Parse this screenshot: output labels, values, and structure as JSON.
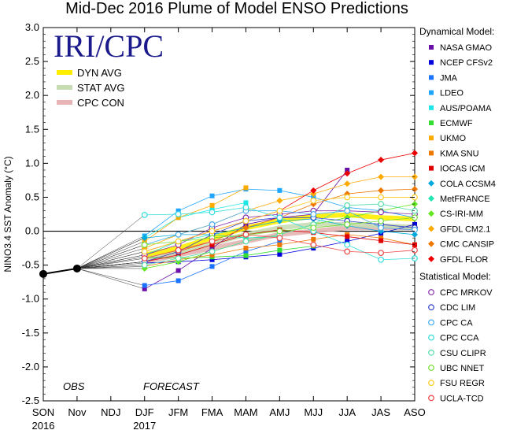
{
  "chart_data": {
    "type": "line",
    "title": "Mid-Dec 2016 Plume of Model ENSO Predictions",
    "ylabel": "NINO3.4 SST Anomaly (°C)",
    "xlabel": "",
    "categories": [
      "SON",
      "Nov",
      "NDJ",
      "DJF",
      "JFM",
      "FMA",
      "MAM",
      "AMJ",
      "MJJ",
      "JJA",
      "JAS",
      "ASO"
    ],
    "year_labels": [
      {
        "label": "2016",
        "at": "SON"
      },
      {
        "label": "2017",
        "at": "DJF"
      }
    ],
    "ylim": [
      -2.5,
      3.0
    ],
    "yticks": [
      -2.5,
      -2.0,
      -1.5,
      -1.0,
      -0.5,
      0.0,
      0.5,
      1.0,
      1.5,
      2.0,
      2.5,
      3.0
    ],
    "ytick_labels": [
      "-2.5",
      "-2.0",
      "-1.5",
      "-1.0",
      "-0.5",
      "0.0",
      "0.5",
      "1.0",
      "1.5",
      "2.0",
      "2.5",
      "3.0"
    ],
    "obs_label": "OBS",
    "forecast_label": "FORECAST",
    "logo_text": "IRI/CPC",
    "observed": {
      "name": "OBS",
      "categories": [
        "SON",
        "Nov"
      ],
      "values": [
        -0.63,
        -0.55
      ]
    },
    "averages": [
      {
        "name": "DYN AVG",
        "color": "#ffee00",
        "values": [
          -0.35,
          -0.25,
          -0.1,
          0.05,
          0.15,
          0.22,
          0.24,
          0.2,
          0.18
        ]
      },
      {
        "name": "STAT AVG",
        "color": "#c8dcb4",
        "values": [
          -0.4,
          -0.3,
          -0.18,
          -0.05,
          0.05,
          0.1,
          0.1,
          0.08,
          0.06
        ]
      },
      {
        "name": "CPC CON",
        "color": "#e6b4b4",
        "values": [
          -0.45,
          -0.35,
          -0.25,
          -0.15,
          -0.05,
          0.0,
          0.05,
          0.05,
          0.05
        ]
      }
    ],
    "legend_dynamical_title": "Dynamical Model:",
    "legend_statistical_title": "Statistical Model:",
    "series_dynamical": [
      {
        "name": "NASA GMAO",
        "color": "#6a0fa8",
        "marker": "square",
        "values": [
          -0.85,
          -0.58,
          -0.25,
          0.1,
          0.2,
          0.25,
          0.9,
          null,
          null
        ]
      },
      {
        "name": "NCEP CFSv2",
        "color": "#0000dd",
        "marker": "square",
        "values": [
          -0.47,
          -0.45,
          -0.42,
          -0.38,
          -0.34,
          -0.25,
          -0.15,
          -0.03,
          0.1
        ]
      },
      {
        "name": "JMA",
        "color": "#1a73ff",
        "marker": "square",
        "values": [
          -0.8,
          -0.73,
          -0.52,
          -0.3,
          -0.15,
          null,
          null,
          null,
          null
        ]
      },
      {
        "name": "LDEO",
        "color": "#1ea6ff",
        "marker": "square",
        "values": [
          -0.07,
          0.3,
          0.52,
          0.62,
          0.6,
          0.5,
          0.35,
          0.3,
          0.2
        ]
      },
      {
        "name": "AUS/POAMA",
        "color": "#1ee6e6",
        "marker": "square",
        "values": [
          -0.1,
          0.2,
          0.32,
          0.42,
          null,
          null,
          null,
          null,
          null
        ]
      },
      {
        "name": "ECMWF",
        "color": "#33dd33",
        "marker": "square",
        "values": [
          -0.38,
          -0.4,
          -0.38,
          -0.36,
          -0.28,
          -0.22,
          null,
          null,
          null
        ]
      },
      {
        "name": "UKMO",
        "color": "#ffaa00",
        "marker": "square",
        "values": [
          -0.15,
          0.2,
          0.38,
          0.64,
          null,
          null,
          null,
          null,
          null
        ]
      },
      {
        "name": "KMA SNU",
        "color": "#ee7700",
        "marker": "square",
        "values": [
          -0.52,
          -0.42,
          -0.35,
          -0.25,
          -0.2,
          -0.12,
          -0.05,
          -0.1,
          -0.2
        ]
      },
      {
        "name": "IOCAS ICM",
        "color": "#e00000",
        "marker": "square",
        "values": [
          -0.45,
          -0.35,
          -0.2,
          -0.05,
          0.02,
          -0.02,
          -0.08,
          -0.14,
          -0.2
        ]
      },
      {
        "name": "COLA CCSM4",
        "color": "#00aadd",
        "marker": "diamond",
        "values": [
          -0.1,
          -0.05,
          -0.05,
          0.05,
          0.15,
          0.18,
          0.08,
          0.0,
          -0.05
        ]
      },
      {
        "name": "MetFRANCE",
        "color": "#22e6b4",
        "marker": "diamond",
        "values": [
          -0.35,
          -0.15,
          -0.05,
          -0.1,
          -0.08,
          null,
          null,
          null,
          null
        ]
      },
      {
        "name": "CS-IRI-MM",
        "color": "#66e622",
        "marker": "diamond",
        "values": [
          -0.55,
          -0.45,
          -0.3,
          -0.15,
          -0.05,
          0.1,
          0.2,
          0.3,
          0.4
        ]
      },
      {
        "name": "GFDL CM2.1",
        "color": "#ffaa00",
        "marker": "diamond",
        "values": [
          -0.25,
          -0.05,
          0.1,
          0.3,
          0.45,
          0.55,
          0.7,
          0.8,
          0.8
        ]
      },
      {
        "name": "CMC CANSIP",
        "color": "#ee7700",
        "marker": "diamond",
        "values": [
          -0.45,
          -0.3,
          -0.15,
          0.05,
          0.2,
          0.4,
          0.55,
          0.6,
          0.62
        ]
      },
      {
        "name": "GFDL FLOR",
        "color": "#ee0000",
        "marker": "diamond",
        "values": [
          -0.3,
          -0.15,
          0.0,
          0.15,
          0.3,
          0.6,
          0.85,
          1.05,
          1.15
        ]
      }
    ],
    "series_statistical": [
      {
        "name": "CPC MRKOV",
        "color": "#8833aa",
        "marker": "circle",
        "values": [
          -0.35,
          -0.2,
          0.05,
          0.2,
          0.25,
          0.3,
          0.3,
          0.28,
          0.25
        ]
      },
      {
        "name": "CDC LIM",
        "color": "#3344cc",
        "marker": "circle",
        "values": [
          -0.45,
          -0.3,
          -0.05,
          0.15,
          0.2,
          0.2,
          0.15,
          0.1,
          0.05
        ]
      },
      {
        "name": "CPC CA",
        "color": "#44aaee",
        "marker": "circle",
        "values": [
          -0.2,
          -0.05,
          0.1,
          0.3,
          0.3,
          0.25,
          0.3,
          0.05,
          0.02
        ]
      },
      {
        "name": "CPC CCA",
        "color": "#33dddd",
        "marker": "circle",
        "values": [
          0.24,
          0.25,
          0.28,
          0.35,
          0.2,
          0.0,
          -0.2,
          -0.42,
          -0.4
        ]
      },
      {
        "name": "CSU CLIPR",
        "color": "#55ddaa",
        "marker": "circle",
        "values": [
          -0.5,
          -0.4,
          -0.3,
          -0.15,
          -0.05,
          0.1,
          0.38,
          0.4,
          0.3
        ]
      },
      {
        "name": "UBC NNET",
        "color": "#77dd33",
        "marker": "circle",
        "values": [
          -0.2,
          -0.15,
          -0.1,
          -0.05,
          0.0,
          0.05,
          0.1,
          0.15,
          0.2
        ]
      },
      {
        "name": "FSU REGR",
        "color": "#ffcc22",
        "marker": "circle",
        "values": [
          -0.3,
          -0.15,
          0.0,
          0.15,
          0.3,
          0.45,
          0.5,
          0.5,
          0.5
        ]
      },
      {
        "name": "UCLA-TCD",
        "color": "#ee4444",
        "marker": "circle",
        "values": [
          -0.4,
          -0.28,
          -0.15,
          -0.05,
          -0.1,
          -0.2,
          -0.3,
          -0.32,
          -0.28
        ]
      }
    ]
  }
}
